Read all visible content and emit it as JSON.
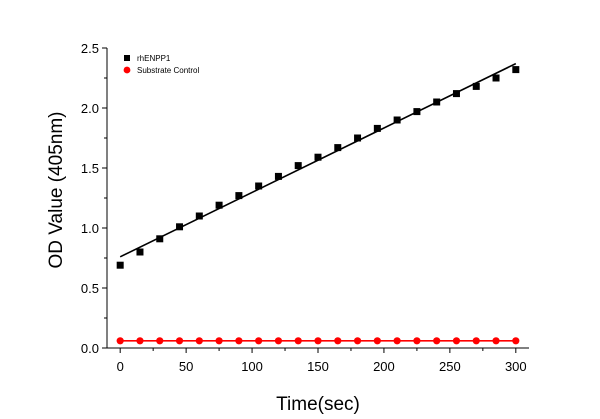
{
  "chart_data": {
    "type": "scatter",
    "title": "",
    "xlabel": "Time(sec)",
    "ylabel": "OD Value (405nm)",
    "xlim": [
      -10,
      310
    ],
    "ylim": [
      0,
      2.5
    ],
    "x_ticks": [
      0,
      50,
      100,
      150,
      200,
      250,
      300
    ],
    "x_tick_labels": [
      "0",
      "50",
      "100",
      "150",
      "200",
      "250",
      "300"
    ],
    "y_ticks": [
      0,
      0.5,
      1.0,
      1.5,
      2.0,
      2.5
    ],
    "y_tick_labels": [
      "0.0",
      "0.5",
      "1.0",
      "1.5",
      "2.0",
      "2.5"
    ],
    "legend_position": "top-left",
    "series": [
      {
        "name": "rhENPP1",
        "color": "#000000",
        "marker": "square",
        "x": [
          0,
          15,
          30,
          45,
          60,
          75,
          90,
          105,
          120,
          135,
          150,
          165,
          180,
          195,
          210,
          225,
          240,
          255,
          270,
          285,
          300
        ],
        "y": [
          0.69,
          0.8,
          0.91,
          1.01,
          1.1,
          1.19,
          1.27,
          1.35,
          1.43,
          1.52,
          1.59,
          1.67,
          1.75,
          1.83,
          1.9,
          1.97,
          2.05,
          2.12,
          2.18,
          2.25,
          2.32
        ],
        "fit": {
          "x": [
            0,
            300
          ],
          "y": [
            0.76,
            2.37
          ]
        }
      },
      {
        "name": "Substrate Control",
        "color": "#ff0000",
        "marker": "circle",
        "x": [
          0,
          15,
          30,
          45,
          60,
          75,
          90,
          105,
          120,
          135,
          150,
          165,
          180,
          195,
          210,
          225,
          240,
          255,
          270,
          285,
          300
        ],
        "y": [
          0.06,
          0.06,
          0.06,
          0.06,
          0.06,
          0.06,
          0.06,
          0.06,
          0.06,
          0.06,
          0.06,
          0.06,
          0.06,
          0.06,
          0.06,
          0.06,
          0.06,
          0.06,
          0.06,
          0.06,
          0.06
        ],
        "fit": {
          "x": [
            0,
            300
          ],
          "y": [
            0.06,
            0.06
          ]
        }
      }
    ]
  }
}
